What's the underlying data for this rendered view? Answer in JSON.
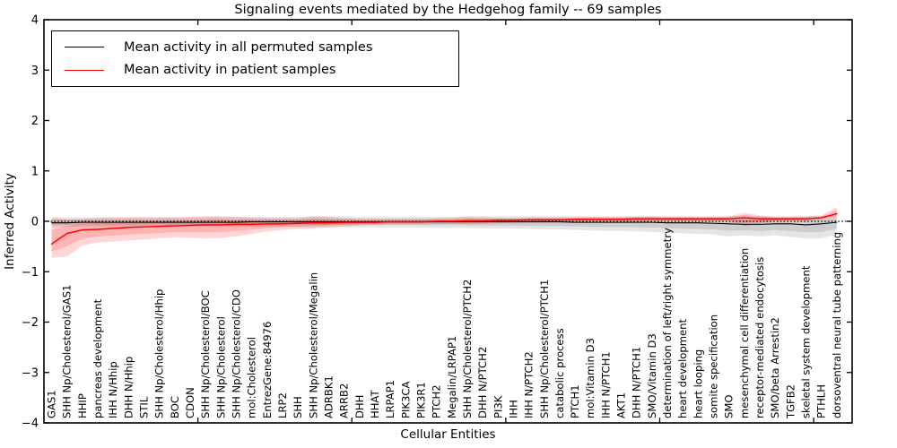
{
  "chart_data": {
    "type": "line",
    "title": "Signaling events mediated by the Hedgehog family -- 69 samples",
    "xlabel": "Cellular Entities",
    "ylabel": "Inferred Activity",
    "ylim": [
      -4,
      4
    ],
    "yticks": [
      -4,
      -3,
      -2,
      -1,
      0,
      1,
      2,
      3,
      4
    ],
    "xtick_positions": [
      10,
      20,
      30,
      40,
      50
    ],
    "grid": false,
    "legend_position": "upper left",
    "zero_line_style": "dotted",
    "categories": [
      "GAS1",
      "SHH Np/Cholesterol/GAS1",
      "HHIP",
      "pancreas development",
      "IHH N/Hhip",
      "DHH N/Hhip",
      "STIL",
      "SHH Np/Cholesterol/Hhip",
      "BOC",
      "CDON",
      "SHH Np/Cholesterol/BOC",
      "SHH Np/Cholesterol",
      "SHH Np/Cholesterol/CDO",
      "mol:Cholesterol",
      "EntrezGene:84976",
      "LRP2",
      "SHH",
      "SHH Np/Cholesterol/Megalin",
      "ADRBK1",
      "ARRB2",
      "DHH",
      "HHAT",
      "LRPAP1",
      "PIK3CA",
      "PIK3R1",
      "PTCH2",
      "Megalin/LRPAP1",
      "SHH Np/Cholesterol/PTCH2",
      "DHH N/PTCH2",
      "PI3K",
      "IHH",
      "IHH N/PTCH2",
      "SHH Np/Cholesterol/PTCH1",
      "catabolic process",
      "PTCH1",
      "mol:Vitamin D3",
      "IHH N/PTCH1",
      "AKT1",
      "DHH N/PTCH1",
      "SMO/Vitamin D3",
      "determination of left/right symmetry",
      "heart development",
      "heart looping",
      "somite specification",
      "SMO",
      "mesenchymal cell differentiation",
      "receptor-mediated endocytosis",
      "SMO/beta Arrestin2",
      "TGFB2",
      "skeletal system development",
      "PTHLH",
      "dorsoventral neural tube patterning"
    ],
    "series": [
      {
        "name": "Mean activity in all permuted samples",
        "color": "#000000",
        "band_fill": "rgba(0,0,0,0.10)",
        "line_width": 1.1,
        "values": [
          -0.03,
          -0.03,
          -0.02,
          -0.02,
          -0.02,
          -0.02,
          -0.02,
          -0.02,
          -0.02,
          -0.02,
          -0.02,
          -0.02,
          -0.02,
          -0.01,
          -0.01,
          -0.01,
          -0.01,
          -0.01,
          -0.01,
          -0.01,
          -0.01,
          -0.01,
          -0.01,
          -0.01,
          -0.01,
          -0.01,
          -0.01,
          -0.01,
          -0.01,
          -0.01,
          -0.01,
          -0.01,
          -0.01,
          -0.01,
          -0.02,
          -0.02,
          -0.02,
          -0.02,
          -0.02,
          -0.02,
          -0.03,
          -0.03,
          -0.03,
          -0.04,
          -0.05,
          -0.06,
          -0.06,
          -0.05,
          -0.05,
          -0.07,
          -0.05,
          -0.02
        ],
        "band_upper": [
          0.09,
          0.08,
          0.08,
          0.08,
          0.08,
          0.08,
          0.08,
          0.08,
          0.08,
          0.08,
          0.09,
          0.09,
          0.09,
          0.09,
          0.09,
          0.09,
          0.09,
          0.1,
          0.1,
          0.1,
          0.09,
          0.09,
          0.09,
          0.09,
          0.09,
          0.09,
          0.09,
          0.1,
          0.1,
          0.1,
          0.1,
          0.1,
          0.1,
          0.1,
          0.1,
          0.1,
          0.1,
          0.1,
          0.1,
          0.1,
          0.1,
          0.1,
          0.1,
          0.1,
          0.1,
          0.1,
          0.1,
          0.1,
          0.1,
          0.1,
          0.1,
          0.13
        ],
        "band_lower": [
          -0.12,
          -0.11,
          -0.1,
          -0.1,
          -0.1,
          -0.1,
          -0.1,
          -0.1,
          -0.1,
          -0.1,
          -0.11,
          -0.11,
          -0.11,
          -0.11,
          -0.11,
          -0.11,
          -0.11,
          -0.12,
          -0.12,
          -0.12,
          -0.12,
          -0.12,
          -0.12,
          -0.12,
          -0.12,
          -0.13,
          -0.13,
          -0.13,
          -0.14,
          -0.14,
          -0.14,
          -0.15,
          -0.16,
          -0.16,
          -0.17,
          -0.18,
          -0.19,
          -0.19,
          -0.2,
          -0.21,
          -0.22,
          -0.24,
          -0.25,
          -0.26,
          -0.3,
          -0.28,
          -0.3,
          -0.28,
          -0.31,
          -0.34,
          -0.34,
          -0.26
        ]
      },
      {
        "name": "Mean activity in patient samples",
        "color": "#ff0000",
        "band_fill": "rgba(255,0,0,0.16)",
        "line_width": 1.5,
        "values": [
          -0.45,
          -0.24,
          -0.17,
          -0.16,
          -0.14,
          -0.12,
          -0.11,
          -0.1,
          -0.09,
          -0.08,
          -0.07,
          -0.07,
          -0.06,
          -0.06,
          -0.05,
          -0.05,
          -0.04,
          -0.03,
          -0.03,
          -0.02,
          -0.02,
          -0.02,
          -0.01,
          -0.01,
          -0.01,
          0.0,
          0.0,
          0.01,
          0.01,
          0.02,
          0.02,
          0.03,
          0.03,
          0.03,
          0.04,
          0.04,
          0.04,
          0.04,
          0.05,
          0.05,
          0.05,
          0.05,
          0.05,
          0.05,
          0.05,
          0.07,
          0.05,
          0.05,
          0.05,
          0.05,
          0.07,
          0.15
        ],
        "band_upper": [
          0.06,
          0.04,
          0.05,
          0.07,
          0.08,
          0.08,
          0.08,
          0.08,
          0.08,
          0.09,
          0.1,
          0.1,
          0.09,
          0.07,
          0.06,
          0.06,
          0.06,
          0.1,
          0.09,
          0.06,
          0.05,
          0.05,
          0.05,
          0.05,
          0.05,
          0.06,
          0.07,
          0.09,
          0.08,
          0.07,
          0.07,
          0.08,
          0.08,
          0.08,
          0.08,
          0.09,
          0.09,
          0.09,
          0.1,
          0.1,
          0.09,
          0.09,
          0.09,
          0.09,
          0.1,
          0.17,
          0.12,
          0.09,
          0.09,
          0.1,
          0.12,
          0.28
        ],
        "band_lower": [
          -0.72,
          -0.7,
          -0.48,
          -0.42,
          -0.4,
          -0.38,
          -0.36,
          -0.34,
          -0.32,
          -0.33,
          -0.34,
          -0.33,
          -0.3,
          -0.25,
          -0.2,
          -0.17,
          -0.15,
          -0.14,
          -0.12,
          -0.1,
          -0.08,
          -0.07,
          -0.06,
          -0.06,
          -0.06,
          -0.05,
          -0.05,
          -0.06,
          -0.05,
          -0.04,
          -0.03,
          -0.02,
          -0.02,
          -0.01,
          -0.01,
          0.0,
          0.0,
          0.0,
          0.0,
          0.01,
          0.01,
          0.01,
          0.01,
          0.01,
          0.01,
          -0.1,
          -0.04,
          0.0,
          0.01,
          0.01,
          0.03,
          0.07
        ]
      }
    ]
  },
  "legend": {
    "items": [
      {
        "label": "Mean activity in all permuted samples",
        "color": "#000000"
      },
      {
        "label": "Mean activity in patient samples",
        "color": "#ff0000"
      }
    ]
  },
  "colors": {
    "axis": "#000000",
    "background": "#ffffff",
    "permuted_line": "#000000",
    "patient_line": "#ff0000"
  }
}
